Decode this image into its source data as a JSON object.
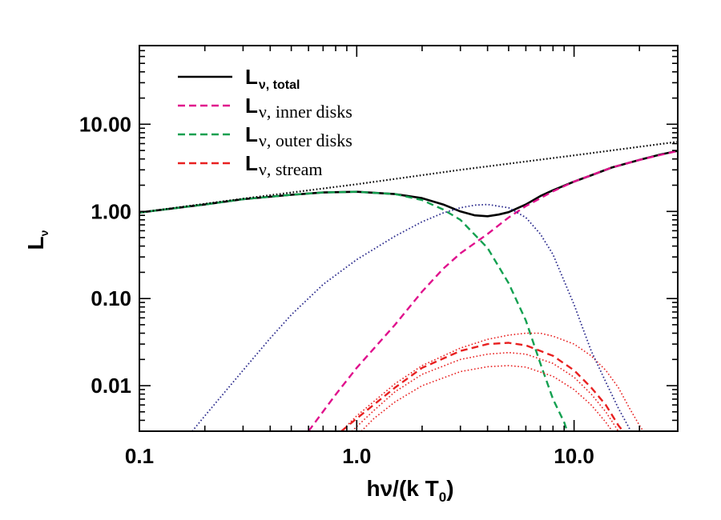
{
  "chart_data": {
    "type": "line",
    "xlabel": {
      "main": "hν/(k T",
      "sub": "0",
      "tail": ")"
    },
    "ylabel": {
      "main": "L",
      "sub": "ν"
    },
    "xscale": "log",
    "yscale": "log",
    "xlim": [
      0.1,
      30
    ],
    "ylim": [
      0.003,
      80
    ],
    "xticks": [
      {
        "value": 0.1,
        "label": "0.1"
      },
      {
        "value": 1,
        "label": "1.0"
      },
      {
        "value": 10,
        "label": "10.0"
      }
    ],
    "yticks": [
      {
        "value": 0.01,
        "label": "0.01"
      },
      {
        "value": 0.1,
        "label": "0.10"
      },
      {
        "value": 1,
        "label": "1.00"
      },
      {
        "value": 10,
        "label": "10.00"
      }
    ],
    "grid": false,
    "legend": {
      "position": "top-left",
      "entries": [
        {
          "main": "L",
          "sub": "ν, total",
          "color": "#000000",
          "dash": "solid"
        },
        {
          "main": "L",
          "sub": "ν, inner disks",
          "color": "#e0108c",
          "dash": "dashed"
        },
        {
          "main": "L",
          "sub": "ν, outer disks",
          "color": "#12a050",
          "dash": "dashed"
        },
        {
          "main": "L",
          "sub": "ν, stream",
          "color": "#e82020",
          "dash": "dashed"
        }
      ]
    },
    "series": [
      {
        "key": "total",
        "color": "#000000",
        "dash": "solid",
        "width": 2.6,
        "points": [
          [
            0.1,
            0.97
          ],
          [
            0.2,
            1.2
          ],
          [
            0.3,
            1.38
          ],
          [
            0.5,
            1.55
          ],
          [
            0.7,
            1.65
          ],
          [
            1.0,
            1.68
          ],
          [
            1.5,
            1.58
          ],
          [
            2.0,
            1.42
          ],
          [
            2.5,
            1.2
          ],
          [
            3.0,
            1.0
          ],
          [
            3.5,
            0.9
          ],
          [
            4.0,
            0.88
          ],
          [
            4.5,
            0.92
          ],
          [
            5.0,
            0.98
          ],
          [
            6.0,
            1.2
          ],
          [
            7.0,
            1.5
          ],
          [
            8.0,
            1.75
          ],
          [
            10.0,
            2.2
          ],
          [
            12.0,
            2.6
          ],
          [
            15.0,
            3.2
          ],
          [
            20.0,
            3.9
          ],
          [
            25.0,
            4.5
          ],
          [
            30.0,
            4.95
          ]
        ]
      },
      {
        "key": "inner-disks",
        "color": "#e0108c",
        "dash": "dashed",
        "width": 2.4,
        "points": [
          [
            0.6,
            0.003
          ],
          [
            0.8,
            0.0079
          ],
          [
            1.0,
            0.016
          ],
          [
            1.5,
            0.05
          ],
          [
            2.0,
            0.12
          ],
          [
            2.5,
            0.22
          ],
          [
            3.0,
            0.33
          ],
          [
            4.0,
            0.55
          ],
          [
            5.0,
            0.85
          ],
          [
            6.0,
            1.15
          ],
          [
            8.0,
            1.7
          ],
          [
            10.0,
            2.2
          ],
          [
            15.0,
            3.2
          ],
          [
            20.0,
            3.9
          ],
          [
            30.0,
            4.95
          ]
        ]
      },
      {
        "key": "outer-disks",
        "color": "#12a050",
        "dash": "dashed",
        "width": 2.4,
        "points": [
          [
            0.1,
            0.97
          ],
          [
            0.2,
            1.2
          ],
          [
            0.3,
            1.38
          ],
          [
            0.5,
            1.55
          ],
          [
            0.7,
            1.65
          ],
          [
            1.0,
            1.68
          ],
          [
            1.5,
            1.58
          ],
          [
            2.0,
            1.35
          ],
          [
            2.5,
            1.05
          ],
          [
            3.0,
            0.8
          ],
          [
            4.0,
            0.38
          ],
          [
            5.0,
            0.15
          ],
          [
            6.0,
            0.056
          ],
          [
            7.0,
            0.018
          ],
          [
            8.0,
            0.007
          ],
          [
            9.0,
            0.0038
          ],
          [
            9.3,
            0.003
          ]
        ]
      },
      {
        "key": "stream",
        "color": "#e82020",
        "dash": "dashed",
        "width": 2.4,
        "points": [
          [
            0.85,
            0.003
          ],
          [
            1.0,
            0.0042
          ],
          [
            1.5,
            0.0095
          ],
          [
            2.0,
            0.016
          ],
          [
            3.0,
            0.025
          ],
          [
            4.0,
            0.03
          ],
          [
            5.0,
            0.031
          ],
          [
            6.0,
            0.029
          ],
          [
            8.0,
            0.022
          ],
          [
            10.0,
            0.015
          ],
          [
            12.0,
            0.0095
          ],
          [
            14.0,
            0.006
          ],
          [
            16.0,
            0.0035
          ],
          [
            16.8,
            0.003
          ]
        ]
      },
      {
        "key": "stream-upper",
        "color": "#e82020",
        "dash": "dotted",
        "width": 1.6,
        "points": [
          [
            0.85,
            0.003
          ],
          [
            1.0,
            0.0045
          ],
          [
            1.5,
            0.0105
          ],
          [
            2.0,
            0.017
          ],
          [
            3.0,
            0.027
          ],
          [
            4.0,
            0.034
          ],
          [
            5.0,
            0.038
          ],
          [
            6.0,
            0.04
          ],
          [
            7.0,
            0.04
          ],
          [
            8.0,
            0.037
          ],
          [
            10.0,
            0.03
          ],
          [
            12.0,
            0.022
          ],
          [
            14.0,
            0.015
          ],
          [
            16.0,
            0.0095
          ],
          [
            18.0,
            0.0055
          ],
          [
            20.0,
            0.0035
          ],
          [
            20.8,
            0.003
          ]
        ]
      },
      {
        "key": "stream-lower",
        "color": "#e82020",
        "dash": "dotted",
        "width": 1.6,
        "points": [
          [
            1.05,
            0.003
          ],
          [
            1.2,
            0.0042
          ],
          [
            1.5,
            0.0065
          ],
          [
            2.0,
            0.01
          ],
          [
            3.0,
            0.0145
          ],
          [
            4.0,
            0.0165
          ],
          [
            5.0,
            0.017
          ],
          [
            6.0,
            0.0163
          ],
          [
            8.0,
            0.0128
          ],
          [
            10.0,
            0.009
          ],
          [
            12.0,
            0.006
          ],
          [
            14.0,
            0.0038
          ],
          [
            15.0,
            0.003
          ]
        ]
      },
      {
        "key": "stream-mid",
        "color": "#e82020",
        "dash": "dotted",
        "width": 1.6,
        "points": [
          [
            0.95,
            0.003
          ],
          [
            1.2,
            0.0052
          ],
          [
            1.5,
            0.0085
          ],
          [
            2.0,
            0.0135
          ],
          [
            3.0,
            0.02
          ],
          [
            4.0,
            0.023
          ],
          [
            5.0,
            0.024
          ],
          [
            6.0,
            0.023
          ],
          [
            8.0,
            0.018
          ],
          [
            10.0,
            0.0125
          ],
          [
            12.0,
            0.008
          ],
          [
            14.0,
            0.005
          ],
          [
            16.0,
            0.003
          ]
        ]
      },
      {
        "key": "blackbody",
        "color": "#2a2a8c",
        "dash": "dotted",
        "width": 1.8,
        "points": [
          [
            0.175,
            0.003
          ],
          [
            0.2,
            0.0045
          ],
          [
            0.3,
            0.015
          ],
          [
            0.4,
            0.035
          ],
          [
            0.5,
            0.065
          ],
          [
            0.7,
            0.145
          ],
          [
            1.0,
            0.28
          ],
          [
            1.5,
            0.52
          ],
          [
            2.0,
            0.76
          ],
          [
            2.5,
            0.96
          ],
          [
            3.0,
            1.1
          ],
          [
            3.5,
            1.18
          ],
          [
            4.0,
            1.2
          ],
          [
            5.0,
            1.1
          ],
          [
            6.0,
            0.85
          ],
          [
            7.0,
            0.55
          ],
          [
            8.0,
            0.32
          ],
          [
            10.0,
            0.085
          ],
          [
            12.0,
            0.025
          ],
          [
            14.0,
            0.011
          ],
          [
            16.0,
            0.0055
          ],
          [
            18.0,
            0.0032
          ],
          [
            18.3,
            0.003
          ]
        ]
      },
      {
        "key": "power-law",
        "color": "#000000",
        "dash": "dotted",
        "width": 2.2,
        "points": [
          [
            0.1,
            0.97
          ],
          [
            0.3,
            1.4
          ],
          [
            1.0,
            2.05
          ],
          [
            3.0,
            3.0
          ],
          [
            10.0,
            4.4
          ],
          [
            30.0,
            6.3
          ]
        ]
      }
    ]
  }
}
